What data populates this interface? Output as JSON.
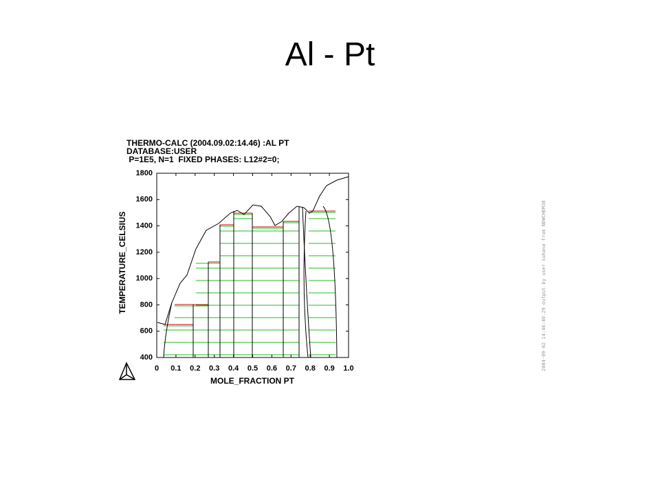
{
  "slide": {
    "title": "Al - Pt"
  },
  "plot": {
    "header": [
      "THERMO-CALC (2004.09.02:14.46) :AL PT",
      "DATABASE:USER",
      " P=1E5, N=1  FIXED PHASES: L12#2=0;"
    ],
    "xlabel": "MOLE_FRACTION PT",
    "ylabel": "TEMPERATURE_CELSIUS",
    "xlim": [
      0,
      1
    ],
    "ylim": [
      400,
      1800
    ],
    "xticks": [
      0,
      0.1,
      0.2,
      0.3,
      0.4,
      0.5,
      0.6,
      0.7,
      0.8,
      0.9,
      {
        "value": 1,
        "label": "1.0"
      }
    ],
    "yticks": [
      400,
      600,
      800,
      1000,
      1200,
      1400,
      1600,
      1800
    ],
    "watermark": "2004-09-02 14:46:48.29 output by user suhana from NEWCHEM38"
  }
}
